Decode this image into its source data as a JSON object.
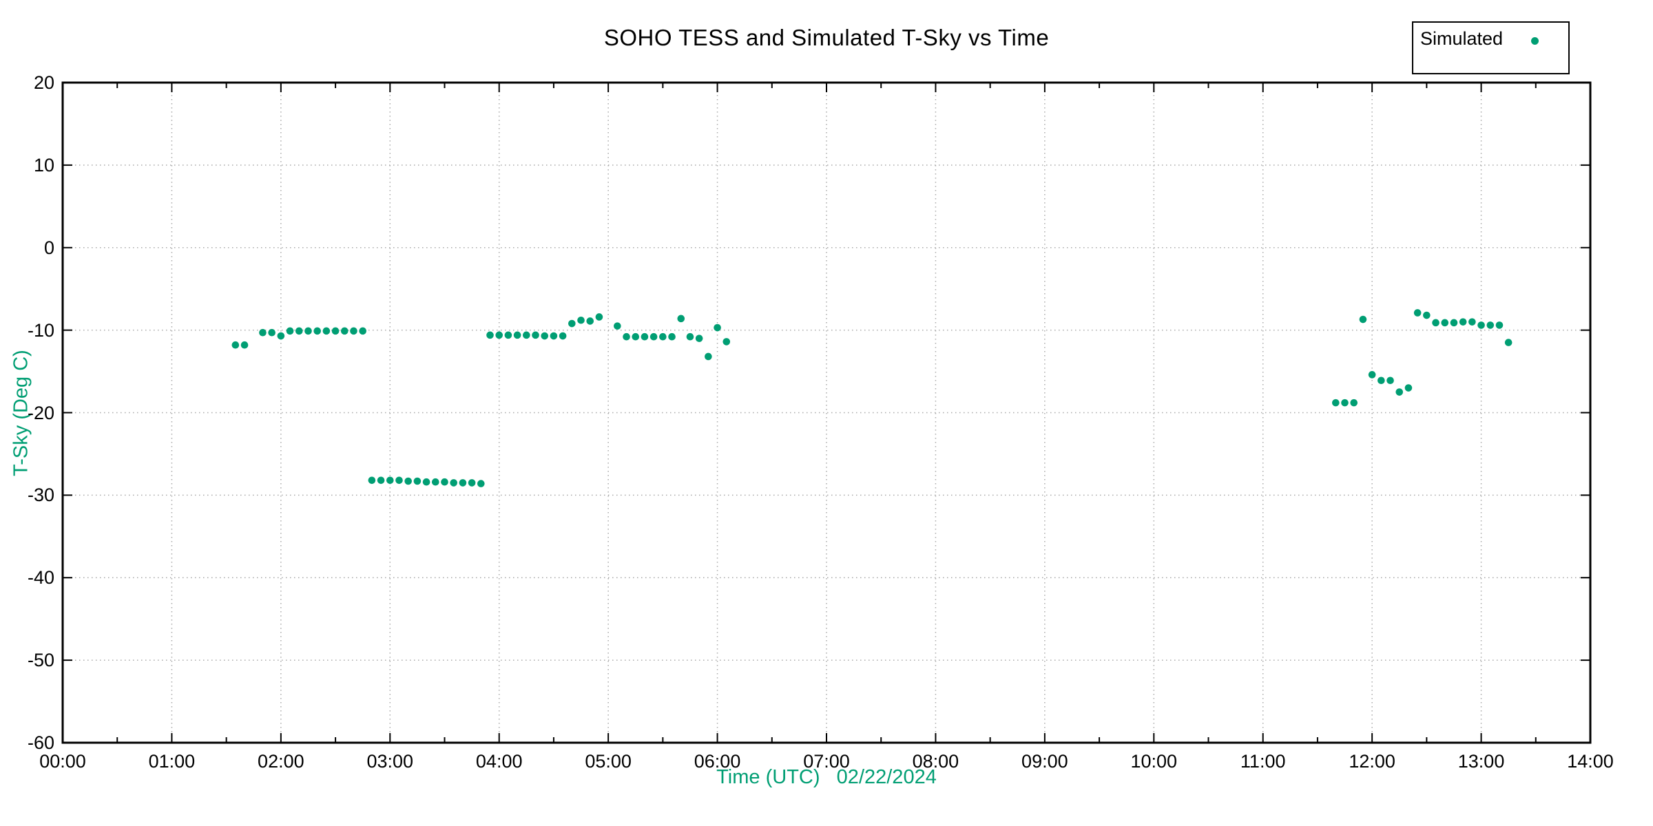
{
  "title_bar": null,
  "chart_data": {
    "type": "scatter",
    "title": "SOHO TESS and Simulated T-Sky vs Time",
    "xlabel": "Time (UTC)   02/22/2024",
    "ylabel": "T-Sky (Deg C)",
    "date_shown": "02/22/2024",
    "xlim_hours": [
      0,
      14
    ],
    "ylim": [
      -60,
      20
    ],
    "x_tick_labels": [
      "00:00",
      "01:00",
      "02:00",
      "03:00",
      "04:00",
      "05:00",
      "06:00",
      "07:00",
      "08:00",
      "09:00",
      "10:00",
      "11:00",
      "12:00",
      "13:00",
      "14:00"
    ],
    "x_minor_tick_hours": 0.5,
    "y_ticks": [
      20,
      10,
      0,
      -10,
      -20,
      -30,
      -40,
      -50,
      -60
    ],
    "grid": "dotted gray lines at every hour and every 10 degrees",
    "legend_position": "top-right, outside plot, boxed",
    "colors": {
      "series": "#009e73",
      "axis_title_text": "#009e73",
      "grid": "#a8a8a8",
      "frame": "#000000",
      "tick_text": "#000000",
      "background": "#ffffff"
    },
    "series": [
      {
        "name": "Simulated",
        "marker": "filled-dot",
        "color": "#009e73",
        "points": [
          {
            "t": "01:35",
            "v": -11.8
          },
          {
            "t": "01:40",
            "v": -11.8
          },
          {
            "t": "01:50",
            "v": -10.3
          },
          {
            "t": "01:55",
            "v": -10.3
          },
          {
            "t": "02:00",
            "v": -10.7
          },
          {
            "t": "02:05",
            "v": -10.1
          },
          {
            "t": "02:10",
            "v": -10.1
          },
          {
            "t": "02:15",
            "v": -10.1
          },
          {
            "t": "02:20",
            "v": -10.1
          },
          {
            "t": "02:25",
            "v": -10.1
          },
          {
            "t": "02:30",
            "v": -10.1
          },
          {
            "t": "02:35",
            "v": -10.1
          },
          {
            "t": "02:40",
            "v": -10.1
          },
          {
            "t": "02:45",
            "v": -10.1
          },
          {
            "t": "02:50",
            "v": -28.2
          },
          {
            "t": "02:55",
            "v": -28.2
          },
          {
            "t": "03:00",
            "v": -28.2
          },
          {
            "t": "03:05",
            "v": -28.2
          },
          {
            "t": "03:10",
            "v": -28.3
          },
          {
            "t": "03:15",
            "v": -28.3
          },
          {
            "t": "03:20",
            "v": -28.4
          },
          {
            "t": "03:25",
            "v": -28.4
          },
          {
            "t": "03:30",
            "v": -28.4
          },
          {
            "t": "03:35",
            "v": -28.5
          },
          {
            "t": "03:40",
            "v": -28.5
          },
          {
            "t": "03:45",
            "v": -28.5
          },
          {
            "t": "03:50",
            "v": -28.6
          },
          {
            "t": "03:55",
            "v": -10.6
          },
          {
            "t": "04:00",
            "v": -10.6
          },
          {
            "t": "04:05",
            "v": -10.6
          },
          {
            "t": "04:10",
            "v": -10.6
          },
          {
            "t": "04:15",
            "v": -10.6
          },
          {
            "t": "04:20",
            "v": -10.6
          },
          {
            "t": "04:25",
            "v": -10.7
          },
          {
            "t": "04:30",
            "v": -10.7
          },
          {
            "t": "04:35",
            "v": -10.7
          },
          {
            "t": "04:40",
            "v": -9.2
          },
          {
            "t": "04:45",
            "v": -8.8
          },
          {
            "t": "04:50",
            "v": -8.9
          },
          {
            "t": "04:55",
            "v": -8.4
          },
          {
            "t": "05:05",
            "v": -9.5
          },
          {
            "t": "05:10",
            "v": -10.8
          },
          {
            "t": "05:15",
            "v": -10.8
          },
          {
            "t": "05:20",
            "v": -10.8
          },
          {
            "t": "05:25",
            "v": -10.8
          },
          {
            "t": "05:30",
            "v": -10.8
          },
          {
            "t": "05:35",
            "v": -10.8
          },
          {
            "t": "05:40",
            "v": -8.6
          },
          {
            "t": "05:45",
            "v": -10.8
          },
          {
            "t": "05:50",
            "v": -11.0
          },
          {
            "t": "05:55",
            "v": -13.2
          },
          {
            "t": "06:00",
            "v": -9.7
          },
          {
            "t": "06:05",
            "v": -11.4
          },
          {
            "t": "11:40",
            "v": -18.8
          },
          {
            "t": "11:45",
            "v": -18.8
          },
          {
            "t": "11:50",
            "v": -18.8
          },
          {
            "t": "11:55",
            "v": -8.7
          },
          {
            "t": "12:00",
            "v": -15.4
          },
          {
            "t": "12:05",
            "v": -16.1
          },
          {
            "t": "12:10",
            "v": -16.1
          },
          {
            "t": "12:15",
            "v": -17.5
          },
          {
            "t": "12:20",
            "v": -17.0
          },
          {
            "t": "12:25",
            "v": -7.9
          },
          {
            "t": "12:30",
            "v": -8.2
          },
          {
            "t": "12:35",
            "v": -9.1
          },
          {
            "t": "12:40",
            "v": -9.1
          },
          {
            "t": "12:45",
            "v": -9.1
          },
          {
            "t": "12:50",
            "v": -9.0
          },
          {
            "t": "12:55",
            "v": -9.0
          },
          {
            "t": "13:00",
            "v": -9.4
          },
          {
            "t": "13:05",
            "v": -9.4
          },
          {
            "t": "13:10",
            "v": -9.4
          },
          {
            "t": "13:15",
            "v": -11.5
          }
        ]
      }
    ]
  }
}
